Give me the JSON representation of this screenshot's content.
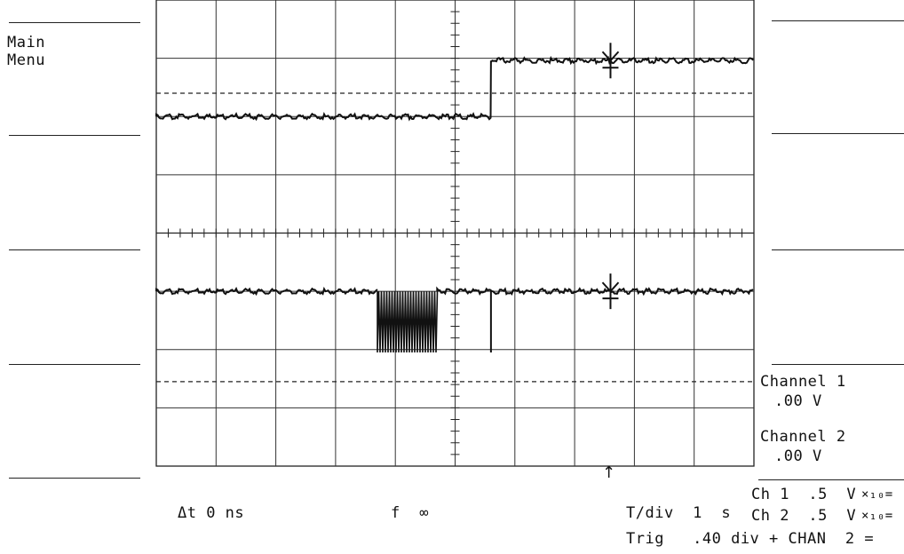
{
  "left_menu": {
    "main_menu_line1": "Main",
    "main_menu_line2": "Menu"
  },
  "right_menu": {
    "channel1_label": "Channel 1",
    "channel1_value": ".00 V",
    "channel2_label": "Channel 2",
    "channel2_value": ".00 V"
  },
  "readouts": {
    "delta_t": "Δt 0 ns",
    "frequency": "f  ∞",
    "tdiv": "T/div  1  s",
    "ch1": "Ch 1  .5  V",
    "ch2": "Ch 2  .5  V",
    "probe_suffix": "×₁₀=",
    "trig": "Trig   .40 div + CHAN  2 ="
  }
}
